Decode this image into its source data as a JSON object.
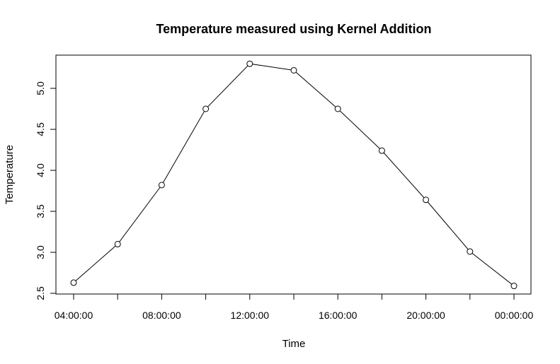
{
  "chart_data": {
    "type": "line",
    "title": "Temperature measured using Kernel Addition",
    "xlabel": "Time",
    "ylabel": "Temperature",
    "x": [
      "04:00:00",
      "06:00:00",
      "08:00:00",
      "10:00:00",
      "12:00:00",
      "14:00:00",
      "16:00:00",
      "18:00:00",
      "20:00:00",
      "22:00:00",
      "00:00:00"
    ],
    "x_tick_labels": [
      "04:00:00",
      "08:00:00",
      "12:00:00",
      "16:00:00",
      "20:00:00",
      "00:00:00"
    ],
    "values": [
      2.63,
      3.1,
      3.82,
      4.75,
      5.3,
      5.22,
      4.75,
      4.24,
      3.64,
      3.01,
      2.59
    ],
    "ylim": [
      2.5,
      5.3
    ],
    "y_ticks": [
      2.5,
      3.0,
      3.5,
      4.0,
      4.5,
      5.0
    ],
    "y_tick_labels": [
      "2.5",
      "3.0",
      "3.5",
      "4.0",
      "4.5",
      "5.0"
    ],
    "markers": "open-circle",
    "line_color": "#000000",
    "grid": false,
    "legend": "none"
  }
}
